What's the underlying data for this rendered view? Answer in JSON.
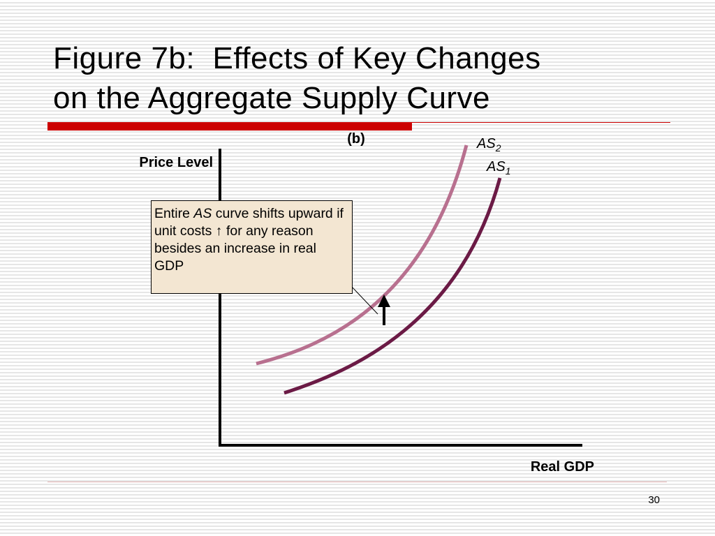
{
  "header": {
    "title": [
      "Figure 7b:  Effects of Key Changes",
      "on the Aggregate Supply Curve"
    ]
  },
  "diagram": {
    "panel_label": "(b)",
    "y_axis_label": "Price Level",
    "x_axis_label": "Real GDP",
    "curves": [
      {
        "name": "AS",
        "sub": "2"
      },
      {
        "name": "AS",
        "sub": "1"
      }
    ],
    "callout": [
      "Entire ",
      "AS",
      " curve shifts upward if unit costs ↑ for any reason besides an increase in real GDP"
    ]
  },
  "footer": {
    "page_number": "30"
  }
}
